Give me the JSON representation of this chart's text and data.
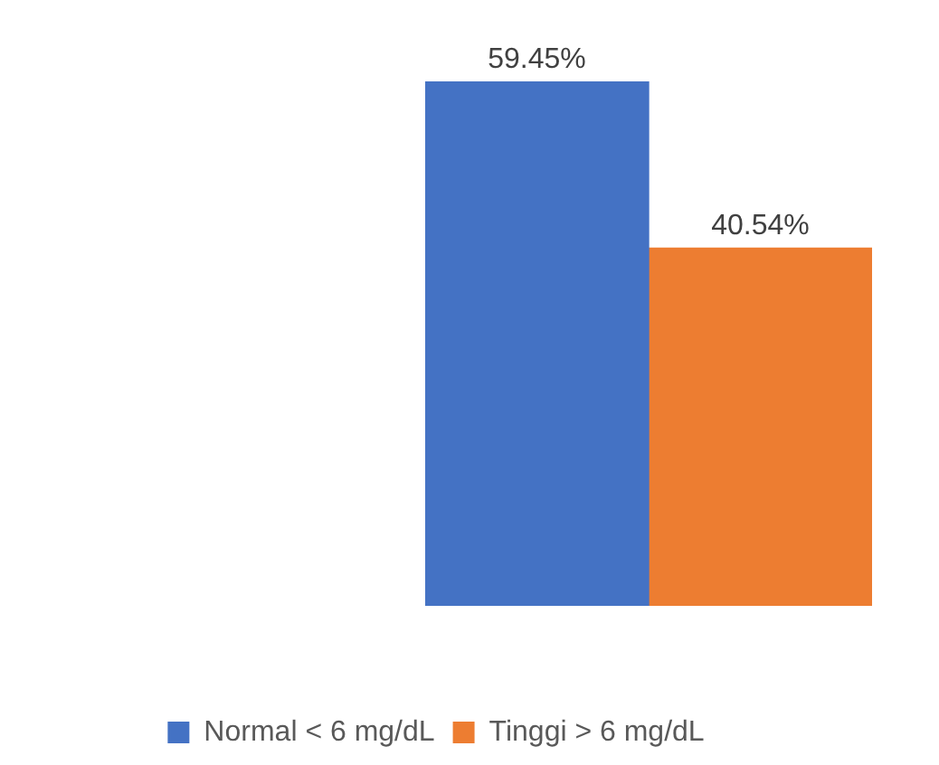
{
  "chart_data": {
    "type": "bar",
    "categories": [
      null
    ],
    "series": [
      {
        "name": "Normal < 6 mg/dL",
        "color": "#4472c4",
        "values": [
          59.45
        ],
        "value_labels": [
          "59.45%"
        ]
      },
      {
        "name": "Tinggi > 6 mg/dL",
        "color": "#ed7d31",
        "values": [
          40.54
        ],
        "value_labels": [
          "40.54%"
        ]
      }
    ],
    "legend": "bottom"
  }
}
